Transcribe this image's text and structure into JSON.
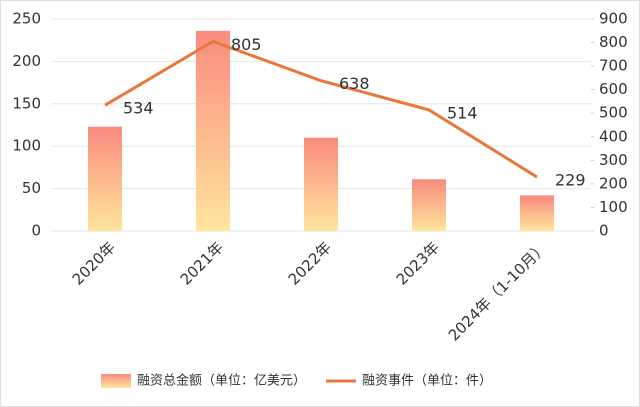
{
  "chart_data": {
    "type": "bar",
    "categories": [
      "2020年",
      "2021年",
      "2022年",
      "2023年",
      "2024年（1-10月）"
    ],
    "series": [
      {
        "name": "融资总金额（单位：亿美元）",
        "type": "bar",
        "color": "#fa8b7f",
        "gradient_to": "#ffe59d",
        "values": [
          123,
          236,
          110,
          61,
          42
        ]
      },
      {
        "name": "融资事件（单位：件）",
        "type": "line",
        "axis": "y2",
        "color": "#e9773a",
        "values": [
          534,
          805,
          638,
          514,
          229
        ]
      }
    ],
    "ylim": [
      0,
      250
    ],
    "yticks": [
      0,
      50,
      100,
      150,
      200,
      250
    ],
    "y2lim": [
      0,
      900
    ],
    "y2ticks": [
      0,
      100,
      200,
      300,
      400,
      500,
      600,
      700,
      800,
      900
    ],
    "grid": true,
    "legend": "bottom"
  }
}
